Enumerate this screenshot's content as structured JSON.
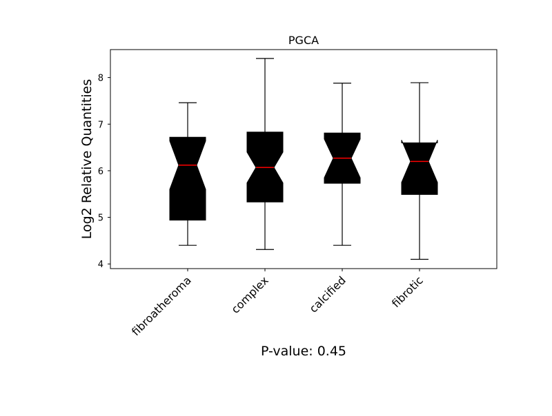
{
  "chart_data": {
    "type": "boxplot",
    "title": "PGCA",
    "xlabel": "P-value: 0.45",
    "ylabel": "Log2 Relative Quantities",
    "categories": [
      "fibroatheroma",
      "complex",
      "calcified",
      "fibrotic"
    ],
    "ylim": [
      3.9,
      8.6
    ],
    "yticks": [
      "4",
      "5",
      "6",
      "7",
      "8"
    ],
    "notched": true,
    "grid": false,
    "colors": {
      "box": "#000000",
      "median": "#ff0000",
      "whisker": "#000000"
    },
    "boxes": [
      {
        "name": "fibroatheroma",
        "whislo": 4.4,
        "q1": 4.94,
        "med": 6.12,
        "q3": 6.72,
        "whishi": 7.46,
        "notch_lo": 5.6,
        "notch_hi": 6.64
      },
      {
        "name": "complex",
        "whislo": 4.31,
        "q1": 5.33,
        "med": 6.07,
        "q3": 6.83,
        "whishi": 8.41,
        "notch_lo": 5.74,
        "notch_hi": 6.4
      },
      {
        "name": "calcified",
        "whislo": 4.4,
        "q1": 5.73,
        "med": 6.27,
        "q3": 6.81,
        "whishi": 7.88,
        "notch_lo": 5.85,
        "notch_hi": 6.68
      },
      {
        "name": "fibrotic",
        "whislo": 4.1,
        "q1": 5.49,
        "med": 6.2,
        "q3": 6.6,
        "whishi": 7.89,
        "notch_lo": 5.75,
        "notch_hi": 6.66
      }
    ]
  }
}
